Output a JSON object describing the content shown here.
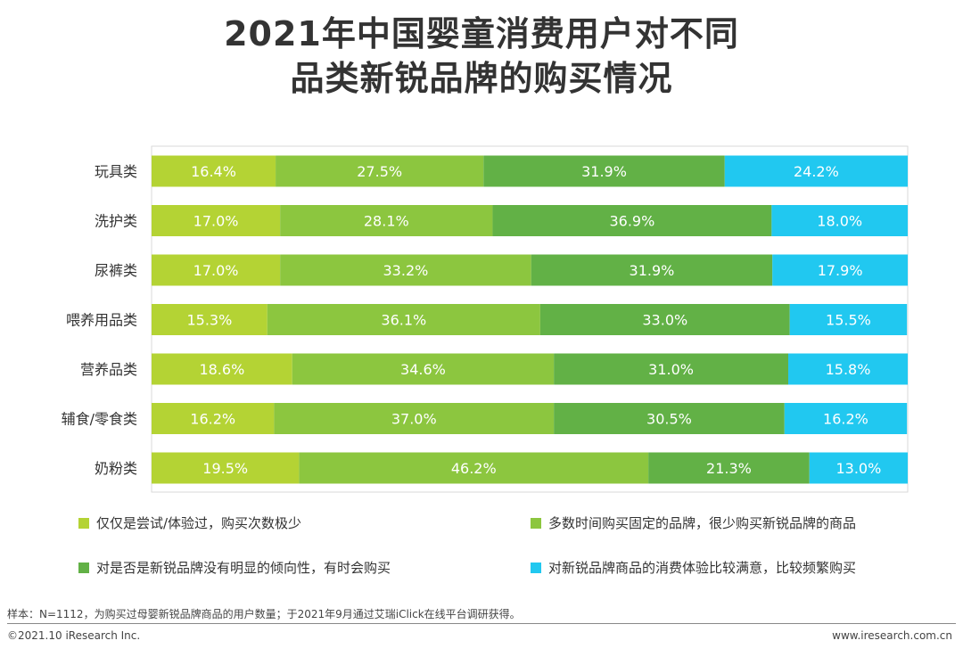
{
  "title_line1": "2021年中国婴童消费用户对不同",
  "title_line2": "品类新锐品牌的购买情况",
  "chart_data": {
    "type": "bar",
    "orientation": "horizontal",
    "stacked": true,
    "percent": true,
    "categories": [
      "玩具类",
      "洗护类",
      "尿裤类",
      "喂养用品类",
      "营养品类",
      "辅食/零食类",
      "奶粉类"
    ],
    "series": [
      {
        "name": "仅仅是尝试/体验过，购买次数极少",
        "color": "#b4d334",
        "values": [
          16.4,
          17.0,
          17.0,
          15.3,
          18.6,
          16.2,
          19.5
        ]
      },
      {
        "name": "多数时间购买固定的品牌，很少购买新锐品牌的商品",
        "color": "#8cc63f",
        "values": [
          27.5,
          28.1,
          33.2,
          36.1,
          34.6,
          37.0,
          46.2
        ]
      },
      {
        "name": "对是否是新锐品牌没有明显的倾向性，有时会购买",
        "color": "#62b146",
        "values": [
          31.9,
          36.9,
          31.9,
          33.0,
          31.0,
          30.5,
          21.3
        ]
      },
      {
        "name": "对新锐品牌商品的消费体验比较满意，比较频繁购买",
        "color": "#21c8f0",
        "values": [
          24.2,
          18.0,
          17.9,
          15.5,
          15.8,
          16.2,
          13.0
        ]
      }
    ],
    "value_suffix": "%",
    "xlim": [
      0,
      100
    ]
  },
  "footnote": "样本：N=1112，为购买过母婴新锐品牌商品的用户数量；于2021年9月通过艾瑞iClick在线平台调研获得。",
  "copyright": "©2021.10 iResearch Inc.",
  "website": "www.iresearch.com.cn"
}
